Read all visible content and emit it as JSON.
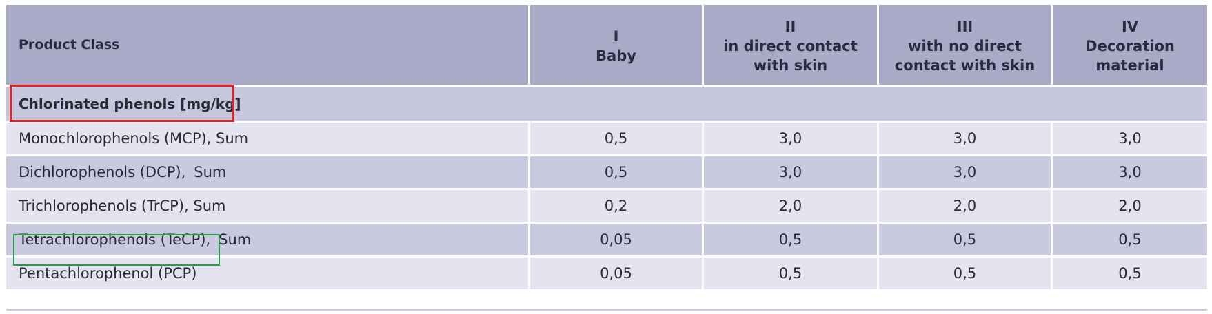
{
  "header": {
    "product_class": "Product Class",
    "columns": [
      {
        "roman": "I",
        "line1": "Baby",
        "line2": ""
      },
      {
        "roman": "II",
        "line1": "in direct contact",
        "line2": "with skin"
      },
      {
        "roman": "III",
        "line1": "with no direct",
        "line2": "contact with skin"
      },
      {
        "roman": "IV",
        "line1": "Decoration",
        "line2": "material"
      }
    ]
  },
  "section": {
    "title": "Chlorinated phenols [mg/kg]"
  },
  "rows": [
    {
      "name": "Monochlorophenols (MCP), Sum",
      "suffix": "",
      "values": [
        "0,5",
        "3,0",
        "3,0",
        "3,0"
      ]
    },
    {
      "name": "Dichlorophenols (DCP),",
      "suffix": "Sum",
      "values": [
        "0,5",
        "3,0",
        "3,0",
        "3,0"
      ]
    },
    {
      "name": "Trichlorophenols (TrCP), Sum",
      "suffix": "",
      "values": [
        "0,2",
        "2,0",
        "2,0",
        "2,0"
      ]
    },
    {
      "name": "Tetrachlorophenols (TeCP),",
      "suffix": "Sum",
      "values": [
        "0,05",
        "0,5",
        "0,5",
        "0,5"
      ]
    },
    {
      "name": "Pentachlorophenol (PCP)",
      "suffix": "",
      "values": [
        "0,05",
        "0,5",
        "0,5",
        "0,5"
      ]
    }
  ],
  "colors": {
    "header_bg": "#a9aac8",
    "highlight_red": "#e42326",
    "highlight_green": "#2c9a45"
  }
}
